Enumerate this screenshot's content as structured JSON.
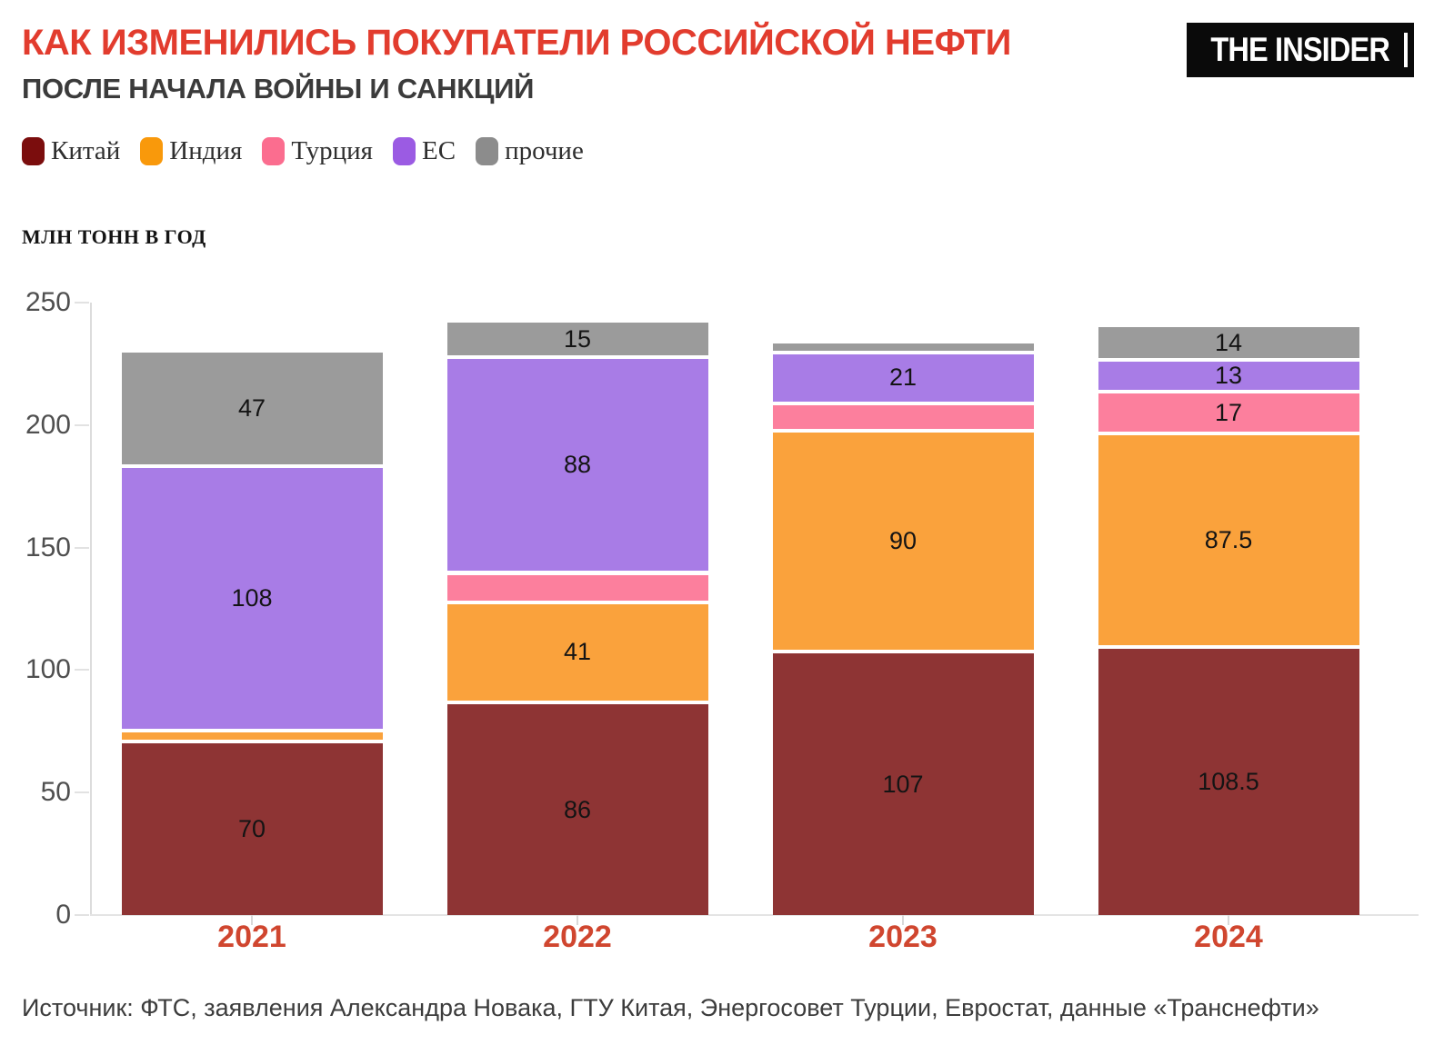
{
  "header": {
    "title": "КАК ИЗМЕНИЛИСЬ ПОКУПАТЕЛИ РОССИЙСКОЙ НЕФТИ",
    "subtitle": "ПОСЛЕ НАЧАЛА ВОЙНЫ И САНКЦИЙ",
    "logo_text": "THE INSIDER"
  },
  "legend": [
    {
      "label": "Китай",
      "color": "#7B0D0D"
    },
    {
      "label": "Индия",
      "color": "#F9990B"
    },
    {
      "label": "Турция",
      "color": "#FB6D8F"
    },
    {
      "label": "ЕС",
      "color": "#9B5BE3"
    },
    {
      "label": "прочие",
      "color": "#8C8C8C"
    }
  ],
  "axis": {
    "unit_label": "МЛН ТОНН В ГОД",
    "y_ticks": [
      "0",
      "50",
      "100",
      "150",
      "200",
      "250"
    ]
  },
  "chart_data": {
    "type": "bar",
    "stacked": true,
    "title": "КАК ИЗМЕНИЛИСЬ ПОКУПАТЕЛИ РОССИЙСКОЙ НЕФТИ ПОСЛЕ НАЧАЛА ВОЙНЫ И САНКЦИЙ",
    "ylabel": "МЛН ТОНН В ГОД",
    "ylim": [
      0,
      250
    ],
    "grid": false,
    "legend_position": "top-left",
    "categories": [
      "2021",
      "2022",
      "2023",
      "2024"
    ],
    "series": [
      {
        "name": "Китай",
        "legend_color": "#7B0D0D",
        "bar_color": "#8E3434",
        "values": [
          70,
          86,
          107,
          108.5
        ],
        "labels": [
          "70",
          "86",
          "107",
          "108.5"
        ]
      },
      {
        "name": "Индия",
        "legend_color": "#F9990B",
        "bar_color": "#FAA23C",
        "values": [
          4.5,
          41,
          90,
          87.5
        ],
        "labels": [
          "",
          "41",
          "90",
          "87.5"
        ]
      },
      {
        "name": "Турция",
        "legend_color": "#FB6D8F",
        "bar_color": "#FC7F9D",
        "values": [
          0,
          12,
          11,
          17
        ],
        "labels": [
          "",
          "",
          "",
          "17"
        ]
      },
      {
        "name": "ЕС",
        "legend_color": "#9B5BE3",
        "bar_color": "#A87CE6",
        "values": [
          108,
          88,
          21,
          13
        ],
        "labels": [
          "108",
          "88",
          "21",
          "13"
        ]
      },
      {
        "name": "прочие",
        "legend_color": "#8C8C8C",
        "bar_color": "#9B9B9B",
        "values": [
          47,
          15,
          4.5,
          14
        ],
        "labels": [
          "47",
          "15",
          "",
          "14"
        ]
      }
    ],
    "totals": [
      229.5,
      242,
      233.5,
      240
    ]
  },
  "source": {
    "text": "Источник: ФТС, заявления Александра Новака, ГТУ Китая, Энергосовет Турции, Евростат, данные «Транснефти»"
  }
}
